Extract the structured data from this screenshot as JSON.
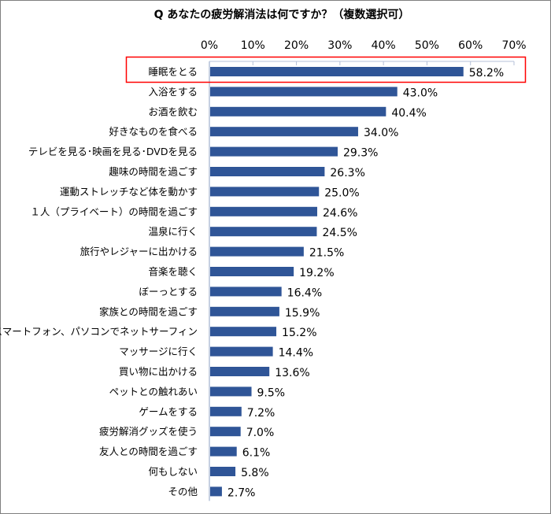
{
  "chart_data": {
    "type": "bar",
    "orientation": "horizontal",
    "title": "Q あなたの疲労解消法は何ですか？（複数選択可）",
    "xlim": [
      0,
      70
    ],
    "ticks": [
      "0%",
      "10%",
      "20%",
      "30%",
      "40%",
      "50%",
      "60%",
      "70%"
    ],
    "tick_values": [
      0,
      10,
      20,
      30,
      40,
      50,
      60,
      70
    ],
    "axis_position": "top",
    "grid": false,
    "bar_color": "#2F5597",
    "highlight_color": "#FF0000",
    "highlight_category": "睡眠をとる",
    "categories": [
      "睡眠をとる",
      "入浴をする",
      "お酒を飲む",
      "好きなものを食べる",
      "テレビを見る･映画を見る･DVDを見る",
      "趣味の時間を過ごす",
      "運動ストレッチなど体を動かす",
      "１人（プライベート）の時間を過ごす",
      "温泉に行く",
      "旅行やレジャーに出かける",
      "音楽を聴く",
      "ぼーっとする",
      "家族との時間を過ごす",
      "スマートフォン、パソコンでネットサーフィン",
      "マッサージに行く",
      "買い物に出かける",
      "ペットとの触れあい",
      "ゲームをする",
      "疲労解消グッズを使う",
      "友人との時間を過ごす",
      "何もしない",
      "その他"
    ],
    "values": [
      58.2,
      43.0,
      40.4,
      34.0,
      29.3,
      26.3,
      25.0,
      24.6,
      24.5,
      21.5,
      19.2,
      16.4,
      15.9,
      15.2,
      14.4,
      13.6,
      9.5,
      7.2,
      7.0,
      6.1,
      5.8,
      2.7
    ],
    "value_labels": [
      "58.2%",
      "43.0%",
      "40.4%",
      "34.0%",
      "29.3%",
      "26.3%",
      "25.0%",
      "24.6%",
      "24.5%",
      "21.5%",
      "19.2%",
      "16.4%",
      "15.9%",
      "15.2%",
      "14.4%",
      "13.6%",
      "9.5%",
      "7.2%",
      "7.0%",
      "6.1%",
      "5.8%",
      "2.7%"
    ]
  }
}
